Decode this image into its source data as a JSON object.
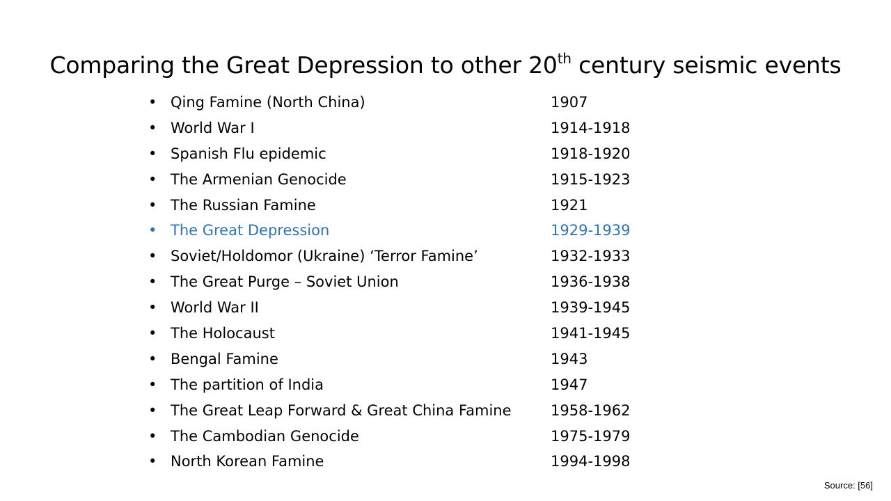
{
  "title": {
    "prefix": "Comparing the Great Depression to other 20",
    "superscript": "th",
    "suffix": " century seismic events"
  },
  "bullet_glyph": "•",
  "highlight_color": "#2e74b5",
  "events": [
    {
      "name": "Qing Famine (North China)",
      "years": "1907",
      "highlighted": false
    },
    {
      "name": "World War I",
      "years": "1914-1918",
      "highlighted": false
    },
    {
      "name": "Spanish Flu epidemic",
      "years": "1918-1920",
      "highlighted": false
    },
    {
      "name": "The Armenian Genocide",
      "years": "1915-1923",
      "highlighted": false
    },
    {
      "name": "The Russian Famine",
      "years": "1921",
      "highlighted": false
    },
    {
      "name": "The Great Depression",
      "years": "1929-1939",
      "highlighted": true
    },
    {
      "name": "Soviet/Holdomor (Ukraine) ‘Terror Famine’",
      "years": "1932-1933",
      "highlighted": false
    },
    {
      "name": "The Great Purge – Soviet Union",
      "years": "1936-1938",
      "highlighted": false
    },
    {
      "name": "World War II",
      "years": "1939-1945",
      "highlighted": false
    },
    {
      "name": "The Holocaust",
      "years": "1941-1945",
      "highlighted": false
    },
    {
      "name": "Bengal Famine",
      "years": "1943",
      "highlighted": false
    },
    {
      "name": "The partition of India",
      "years": "1947",
      "highlighted": false
    },
    {
      "name": "The Great Leap Forward & Great China Famine",
      "years": "1958-1962",
      "highlighted": false
    },
    {
      "name": "The Cambodian Genocide",
      "years": "1975-1979",
      "highlighted": false
    },
    {
      "name": "North Korean Famine",
      "years": "1994-1998",
      "highlighted": false
    }
  ],
  "source": "Source: [56]"
}
